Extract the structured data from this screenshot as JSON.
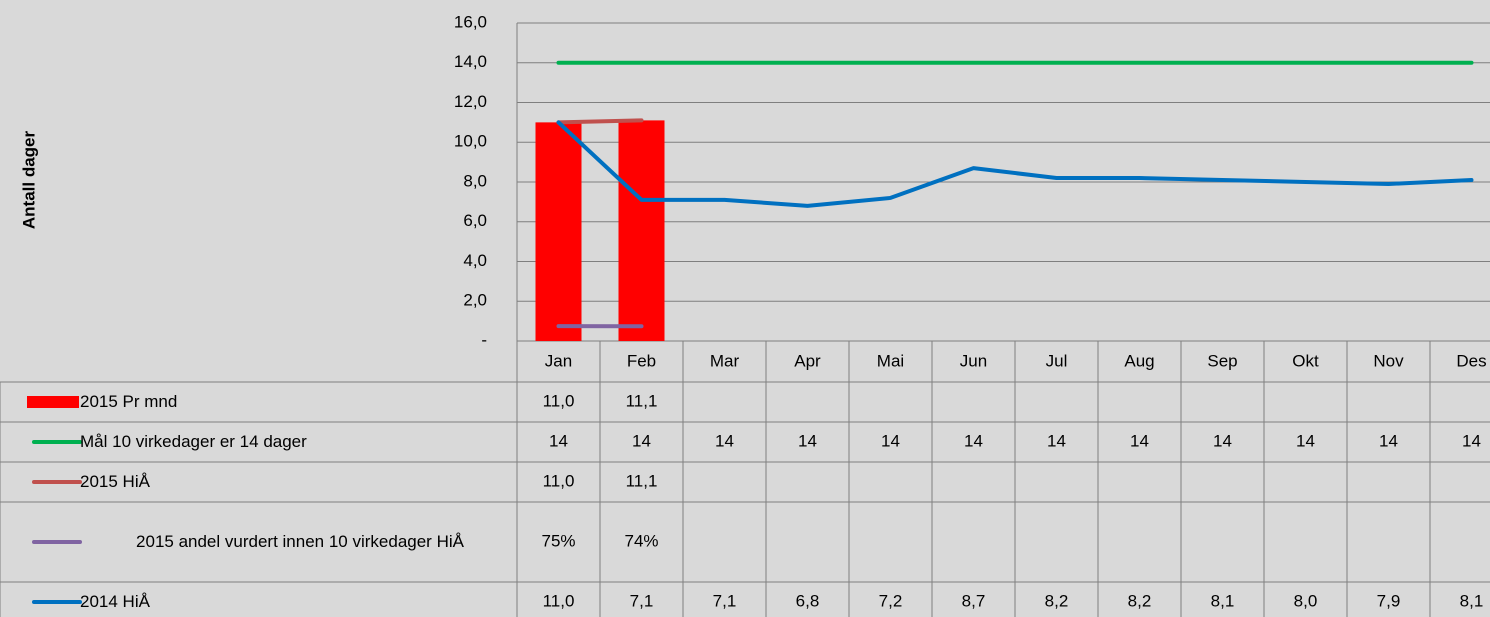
{
  "chart_data": {
    "type": "combo",
    "ylabel": "Antall dager",
    "categories": [
      "Jan",
      "Feb",
      "Mar",
      "Apr",
      "Mai",
      "Jun",
      "Jul",
      "Aug",
      "Sep",
      "Okt",
      "Nov",
      "Des"
    ],
    "ylim": [
      0,
      16
    ],
    "yticks": [
      {
        "value": 0,
        "label": "-"
      },
      {
        "value": 2,
        "label": "2,0"
      },
      {
        "value": 4,
        "label": "4,0"
      },
      {
        "value": 6,
        "label": "6,0"
      },
      {
        "value": 8,
        "label": "8,0"
      },
      {
        "value": 10,
        "label": "10,0"
      },
      {
        "value": 12,
        "label": "12,0"
      },
      {
        "value": 14,
        "label": "14,0"
      },
      {
        "value": 16,
        "label": "16,0"
      }
    ],
    "grid": true,
    "series": [
      {
        "name": "2015 Pr mnd",
        "type": "bar",
        "color": "#ff0000",
        "values": [
          11.0,
          11.1,
          null,
          null,
          null,
          null,
          null,
          null,
          null,
          null,
          null,
          null
        ],
        "value_labels": [
          "11,0",
          "11,1",
          null,
          null,
          null,
          null,
          null,
          null,
          null,
          null,
          null,
          null
        ]
      },
      {
        "name": "Mål 10 virkedager er 14 dager",
        "type": "line",
        "color": "#00b050",
        "values": [
          14,
          14,
          14,
          14,
          14,
          14,
          14,
          14,
          14,
          14,
          14,
          14
        ]
      },
      {
        "name": "2015 HiÅ",
        "type": "line",
        "color": "#c0504d",
        "values": [
          11.0,
          11.1,
          null,
          null,
          null,
          null,
          null,
          null,
          null,
          null,
          null,
          null
        ],
        "value_labels": [
          "11,0",
          "11,1",
          null,
          null,
          null,
          null,
          null,
          null,
          null,
          null,
          null,
          null
        ]
      },
      {
        "name": "2015 andel vurdert innen 10 virkedager HiÅ",
        "type": "line",
        "color": "#8064a2",
        "values": [
          0.75,
          0.74,
          null,
          null,
          null,
          null,
          null,
          null,
          null,
          null,
          null,
          null
        ],
        "value_labels": [
          "75%",
          "74%",
          null,
          null,
          null,
          null,
          null,
          null,
          null,
          null,
          null,
          null
        ]
      },
      {
        "name": "2014 HiÅ",
        "type": "line",
        "color": "#0070c0",
        "values": [
          11.0,
          7.1,
          7.1,
          6.8,
          7.2,
          8.7,
          8.2,
          8.2,
          8.1,
          8.0,
          7.9,
          8.1
        ],
        "value_labels": [
          "11,0",
          "7,1",
          "7,1",
          "6,8",
          "7,2",
          "8,7",
          "8,2",
          "8,2",
          "8,1",
          "8,0",
          "7,9",
          "8,1"
        ]
      }
    ]
  }
}
